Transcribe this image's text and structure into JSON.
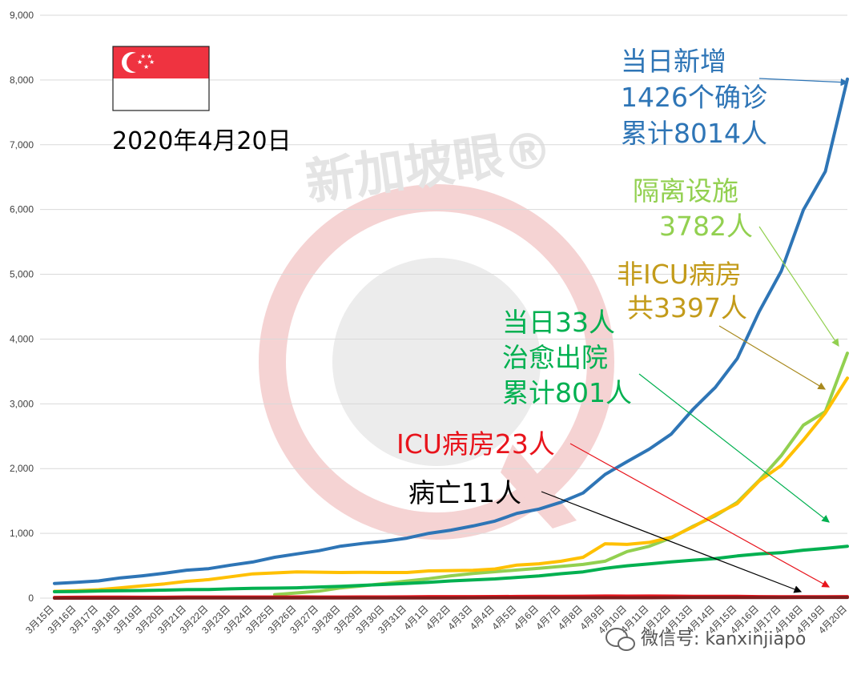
{
  "chart_data": {
    "type": "line",
    "ylim": [
      0,
      9000
    ],
    "yticks": [
      0,
      1000,
      2000,
      3000,
      4000,
      5000,
      6000,
      7000,
      8000,
      9000
    ],
    "ytick_labels": [
      "0",
      "1,000",
      "2,000",
      "3,000",
      "4,000",
      "5,000",
      "6,000",
      "7,000",
      "8,000",
      "9,000"
    ],
    "grid": true,
    "x": [
      "3月15日",
      "3月16日",
      "3月17日",
      "3月18日",
      "3月19日",
      "3月20日",
      "3月21日",
      "3月22日",
      "3月23日",
      "3月24日",
      "3月25日",
      "3月26日",
      "3月27日",
      "3月28日",
      "3月29日",
      "3月30日",
      "3月31日",
      "4月1日",
      "4月2日",
      "4月3日",
      "4月4日",
      "4月5日",
      "4月6日",
      "4月7日",
      "4月8日",
      "4月9日",
      "4月10日",
      "4月11日",
      "4月12日",
      "4月13日",
      "4月14日",
      "4月15日",
      "4月16日",
      "4月17日",
      "4月18日",
      "4月19日",
      "4月20日"
    ],
    "series": [
      {
        "key": "confirmed",
        "color": "#2e75b6",
        "values": [
          226,
          243,
          266,
          313,
          345,
          385,
          432,
          455,
          509,
          558,
          631,
          683,
          732,
          802,
          844,
          879,
          926,
          1000,
          1049,
          1114,
          1189,
          1309,
          1375,
          1481,
          1623,
          1910,
          2108,
          2299,
          2532,
          2918,
          3252,
          3699,
          4427,
          5050,
          5992,
          6588,
          8014
        ]
      },
      {
        "key": "isolation",
        "color": "#92d050",
        "values": [
          null,
          null,
          null,
          null,
          null,
          null,
          null,
          null,
          null,
          null,
          55,
          80,
          108,
          158,
          190,
          225,
          265,
          300,
          345,
          380,
          408,
          434,
          460,
          489,
          520,
          570,
          720,
          800,
          930,
          1110,
          1270,
          1480,
          1820,
          2200,
          2670,
          2880,
          3782
        ]
      },
      {
        "key": "ward",
        "color": "#ffc000",
        "values": [
          105,
          115,
          130,
          160,
          190,
          220,
          260,
          285,
          330,
          375,
          390,
          405,
          400,
          395,
          398,
          395,
          395,
          420,
          425,
          430,
          450,
          510,
          530,
          570,
          630,
          840,
          830,
          860,
          940,
          1100,
          1290,
          1460,
          1810,
          2050,
          2440,
          2860,
          3397
        ]
      },
      {
        "key": "discharged",
        "color": "#00b050",
        "values": [
          99,
          103,
          110,
          114,
          117,
          124,
          131,
          133,
          144,
          152,
          155,
          160,
          172,
          183,
          198,
          212,
          228,
          244,
          266,
          282,
          297,
          320,
          344,
          377,
          406,
          460,
          500,
          528,
          560,
          586,
          611,
          652,
          683,
          701,
          740,
          768,
          801
        ]
      },
      {
        "key": "icu",
        "color": "#e8141c",
        "values": [
          11,
          14,
          15,
          15,
          14,
          14,
          17,
          17,
          17,
          17,
          17,
          19,
          17,
          17,
          19,
          19,
          20,
          24,
          23,
          23,
          25,
          26,
          29,
          29,
          30,
          32,
          31,
          32,
          31,
          29,
          29,
          28,
          23,
          21,
          22,
          22,
          23
        ]
      },
      {
        "key": "deaths",
        "color": "#7f1d1d",
        "values": [
          0,
          0,
          0,
          0,
          0,
          0,
          2,
          2,
          2,
          2,
          2,
          2,
          2,
          2,
          2,
          3,
          3,
          3,
          3,
          5,
          6,
          6,
          6,
          6,
          6,
          6,
          6,
          6,
          7,
          9,
          10,
          10,
          10,
          10,
          11,
          11,
          11
        ]
      }
    ]
  },
  "labels": {
    "date": "2020年4月20日",
    "watermark": "新加坡眼®",
    "credit": "微信号: kanxinjiapo",
    "confirmed": [
      "当日新增",
      "1426个确诊",
      "累计8014人"
    ],
    "isolation": [
      "隔离设施",
      "3782人"
    ],
    "ward": [
      "非ICU病房",
      "共3397人"
    ],
    "discharged": [
      "当日33人",
      "治愈出院",
      "累计801人"
    ],
    "icu": "ICU病房23人",
    "deaths": "病亡11人"
  },
  "colors": {
    "confirmed_text": "#2e75b6",
    "isolation_text": "#92d050",
    "ward_text": "#c39b1a",
    "discharged_text": "#00b050",
    "icu_text": "#e8141c",
    "deaths_text": "#000000",
    "flag_red": "#ef3340",
    "watermark_ring": "#f5d3d3",
    "watermark_center": "#e9e9e9"
  },
  "icons": [
    "singapore-flag",
    "watermark-logo",
    "wechat-icon"
  ]
}
